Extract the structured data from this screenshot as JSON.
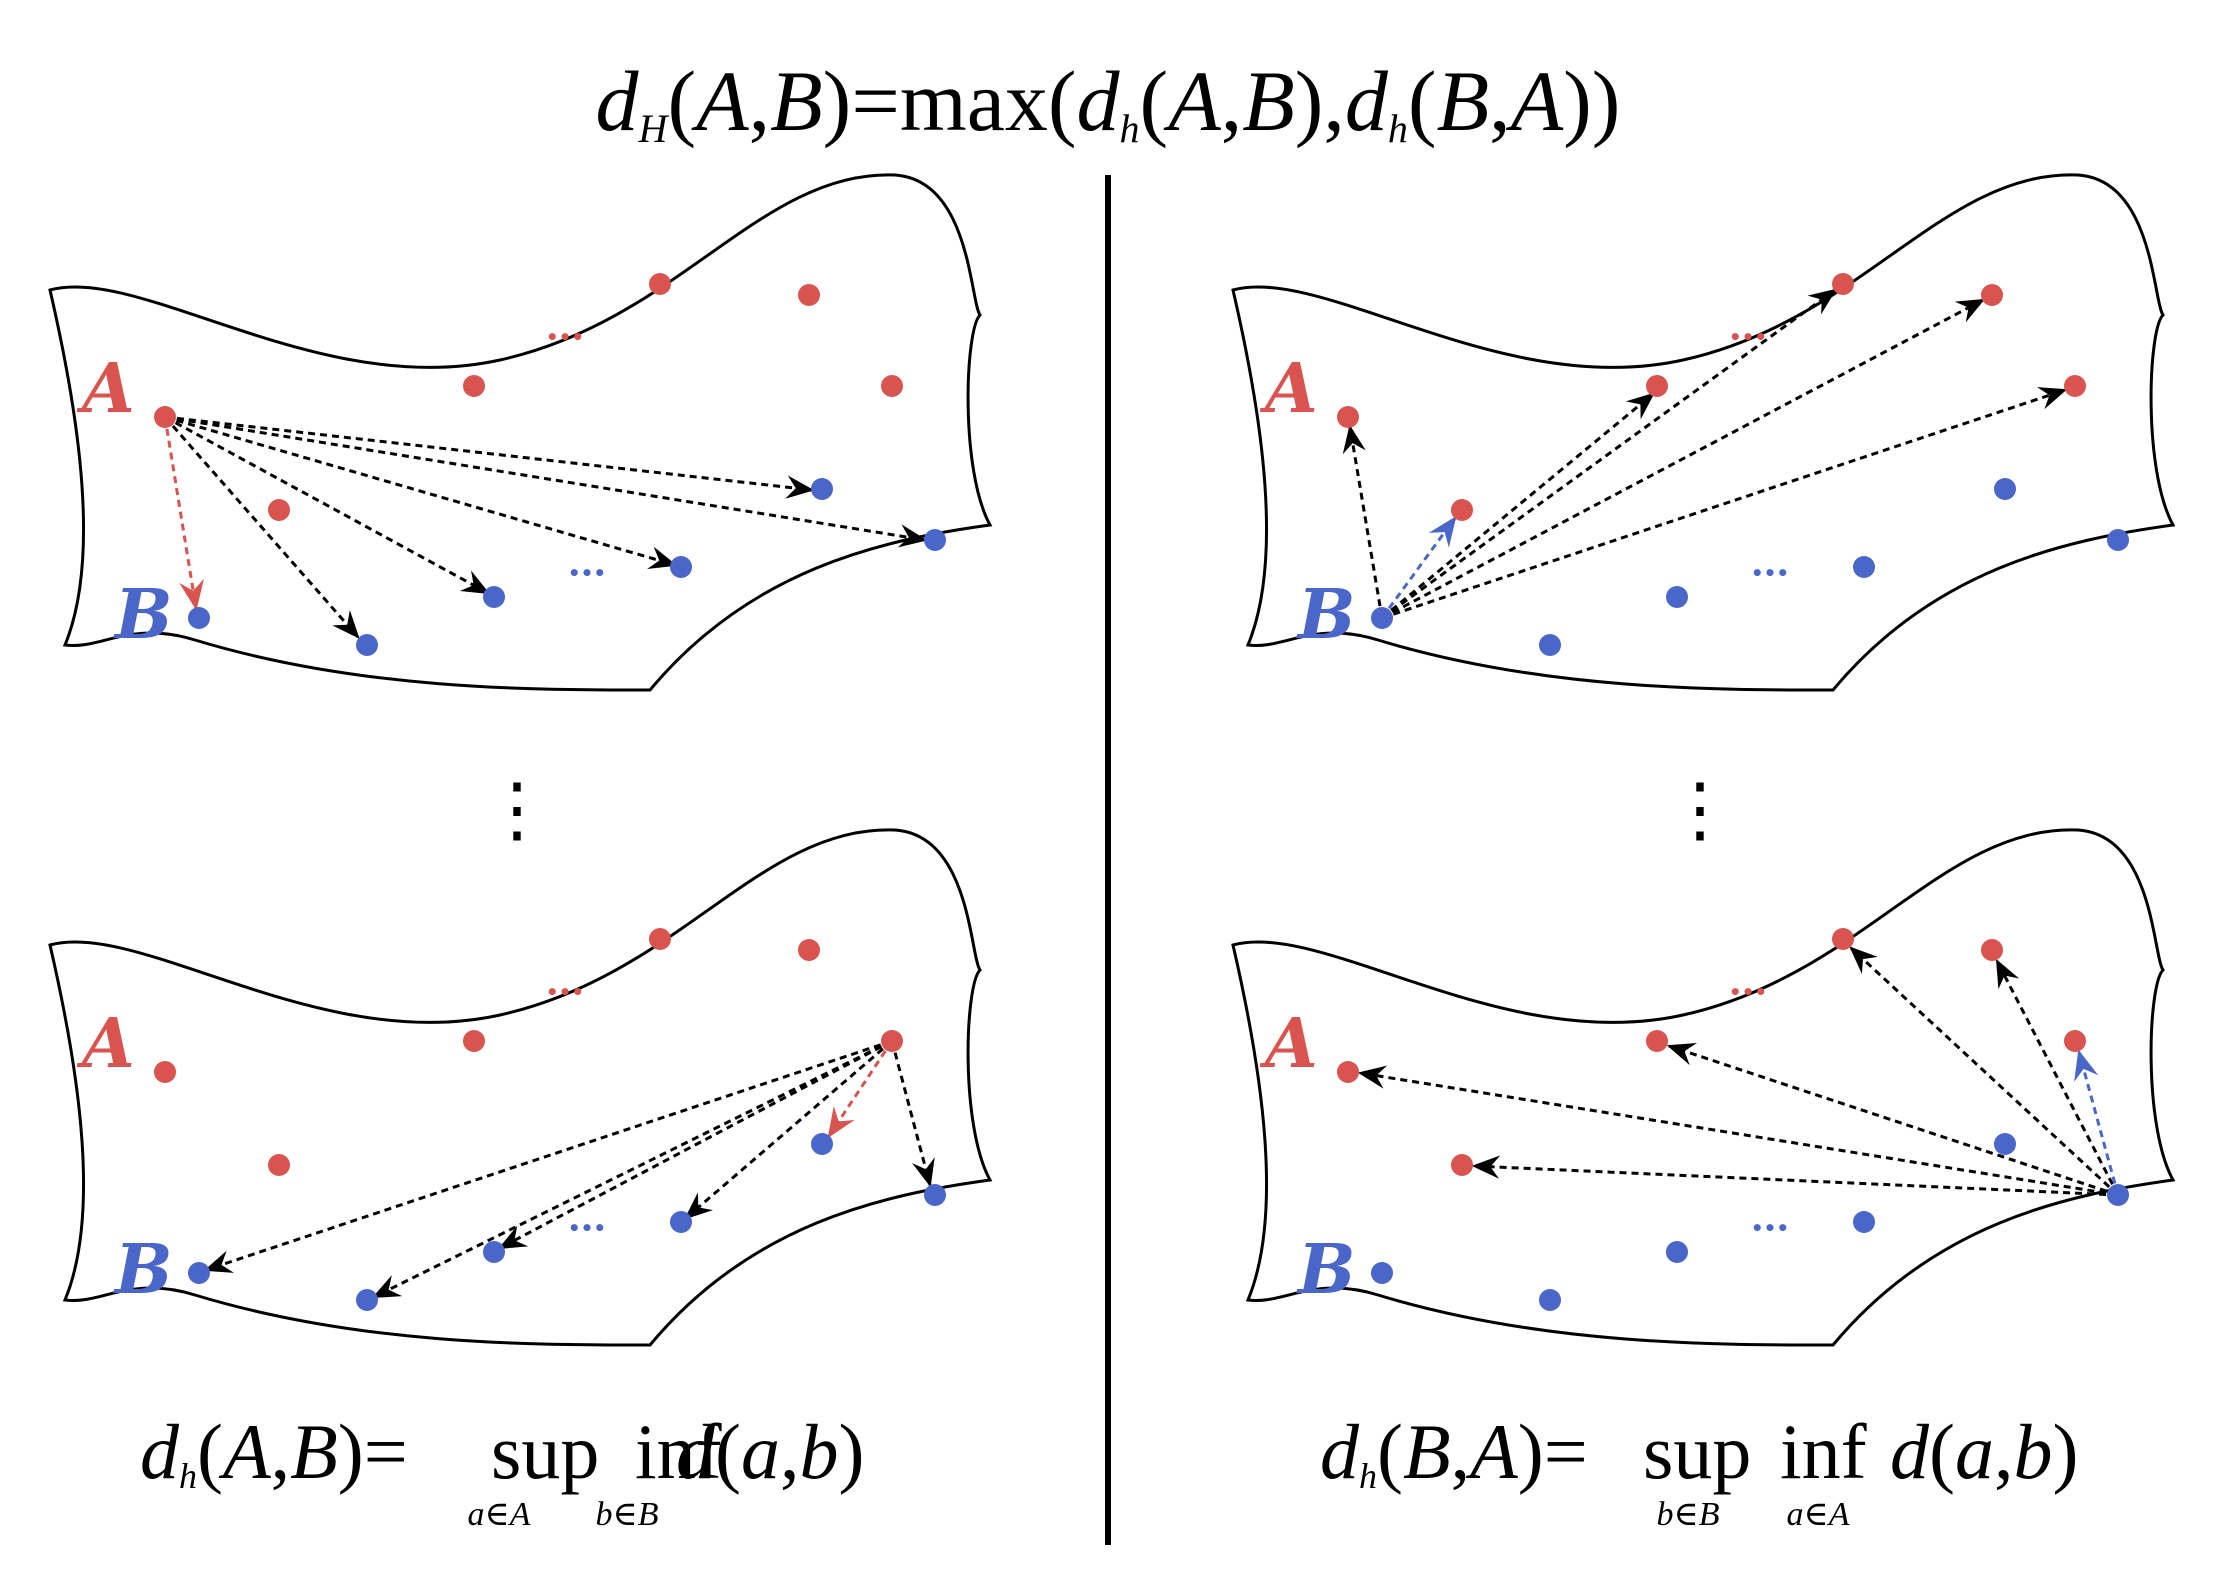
{
  "colors": {
    "set_a": "#d9534f",
    "set_b": "#4a66c9",
    "ink": "#000000"
  },
  "formulas": {
    "top": {
      "d": "d",
      "sub_H": "H",
      "lp1": "(",
      "A1": "A",
      "comma1": ",",
      "B1": "B",
      "rp1": ")",
      "eq": "=",
      "max": "max",
      "lp2": "(",
      "d2": "d",
      "sub_h2": "h",
      "lp3": "(",
      "A2": "A",
      "comma2": ",",
      "B2": "B",
      "rp3": ")",
      "comma3": ",",
      "d3": "d",
      "sub_h3": "h",
      "lp4": "(",
      "B3": "B",
      "comma4": ",",
      "A3": "A",
      "rp4": ")",
      "rp5": ")"
    },
    "left": {
      "d": "d",
      "sub_h": "h",
      "lp": "(",
      "X": "A",
      "comma": ",",
      "Y": "B",
      "rp": ")",
      "eq": "=",
      "sup": "sup",
      "inf": "inf",
      "d2": "d",
      "lp2": "(",
      "x": "a",
      "comma2": ",",
      "y": "b",
      "rp2": ")",
      "sup_sub": "a∈A",
      "inf_sub": "b∈B"
    },
    "right": {
      "d": "d",
      "sub_h": "h",
      "lp": "(",
      "X": "B",
      "comma": ",",
      "Y": "A",
      "rp": ")",
      "eq": "=",
      "sup": "sup",
      "inf": "inf",
      "d2": "d",
      "lp2": "(",
      "x": "a",
      "comma2": ",",
      "y": "b",
      "rp2": ")",
      "sup_sub": "b∈B",
      "inf_sub": "a∈A"
    }
  },
  "panels": {
    "tl": {
      "label_a": "A",
      "label_b": "B",
      "ellipsis_a": "•••",
      "ellipsis_b": "•••"
    },
    "bl": {
      "label_a": "A",
      "label_b": "B",
      "ellipsis_a": "•••",
      "ellipsis_b": "•••"
    },
    "tr": {
      "label_a": "A",
      "label_b": "B",
      "ellipsis_a": "•••",
      "ellipsis_b": "•••"
    },
    "br": {
      "label_a": "A",
      "label_b": "B",
      "ellipsis_a": "•••",
      "ellipsis_b": "•••"
    }
  },
  "vdots": {
    "left": "⋮",
    "right": "⋮"
  }
}
